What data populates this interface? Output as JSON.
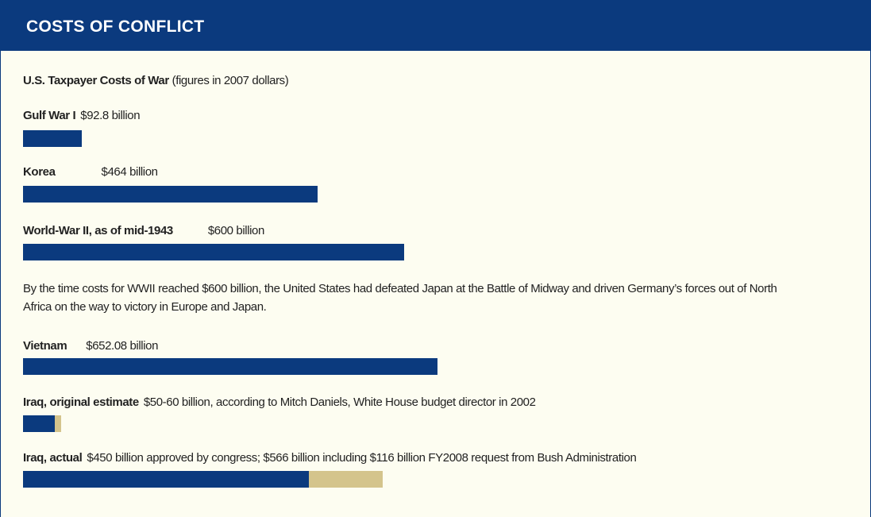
{
  "header": "COSTS OF CONFLICT",
  "chart_data": {
    "type": "bar",
    "title": "U.S. Taxpayer Costs of War",
    "subtitle": "(figures in 2007 dollars)",
    "categories": [
      "Gulf War I",
      "Korea",
      "World-War II, as of mid-1943",
      "Vietnam",
      "Iraq, original estimate",
      "Iraq, actual"
    ],
    "series": [
      {
        "color": "#0b3a7e",
        "values": [
          92.8,
          464,
          600,
          652.08,
          50,
          450
        ],
        "value_labels": [
          "$92.8 billion",
          "$464 billion",
          "$600 billion",
          "$652.08 billion",
          "$50-60 billion, according to Mitch Daniels, White House budget director in 2002",
          "$450 billion approved by congress; $566 billion including $116 billion FY2008 request from Bush Administration"
        ]
      },
      {
        "color": "#d4c48c",
        "values": [
          null,
          null,
          null,
          null,
          10,
          116
        ]
      }
    ],
    "annotation": "By the time costs for WWII reached $600 billion, the United States had defeated Japan at the Battle of Midway and driven Germany’s forces out of North Africa on the way to victory in Europe and Japan."
  }
}
